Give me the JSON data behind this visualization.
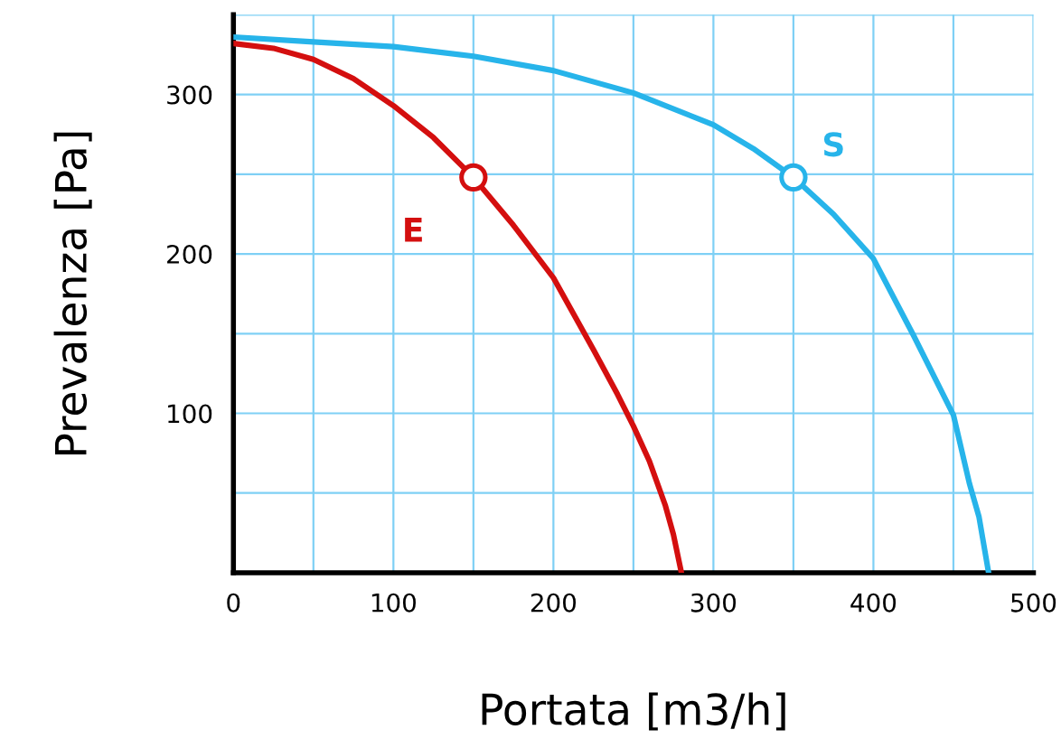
{
  "chart_data": {
    "type": "line",
    "xlabel": "Portata [m3/h]",
    "ylabel": "Prevalenza [Pa]",
    "xlim": [
      0,
      500
    ],
    "ylim": [
      0,
      350
    ],
    "xticks": [
      0,
      {
        "value": 50,
        "label": null
      },
      100,
      {
        "value": 150,
        "label": null
      },
      200,
      {
        "value": 250,
        "label": null
      },
      300,
      {
        "value": 350,
        "label": null
      },
      400,
      {
        "value": 450,
        "label": null
      },
      500
    ],
    "yticks": [
      {
        "value": 0,
        "label": null
      },
      {
        "value": 50,
        "label": null
      },
      100,
      {
        "value": 150,
        "label": null
      },
      200,
      {
        "value": 250,
        "label": null
      },
      300,
      {
        "value": 350,
        "label": null
      }
    ],
    "grid": true,
    "legend": false,
    "line_style": "solid",
    "series": [
      {
        "color": "#d40f0f",
        "x": [
          0,
          25,
          50,
          75,
          100,
          125,
          150,
          175,
          200,
          225,
          240,
          250,
          260,
          270,
          275,
          280
        ],
        "values": [
          332,
          329,
          322,
          310,
          293,
          273,
          248,
          218,
          185,
          140,
          112,
          92,
          70,
          42,
          24,
          0
        ]
      },
      {
        "color": "#27b4ea",
        "x": [
          0,
          50,
          100,
          150,
          200,
          250,
          300,
          325,
          350,
          375,
          400,
          425,
          450,
          460,
          466,
          472
        ],
        "values": [
          336,
          333,
          330,
          324,
          315,
          301,
          281,
          266,
          248,
          225,
          197,
          149,
          99,
          56,
          35,
          0
        ]
      },
      {
        "type": "scatter",
        "name": "E",
        "color": "#d40f0f",
        "marker": "circle",
        "x": [
          150
        ],
        "values": [
          248
        ]
      },
      {
        "type": "scatter",
        "name": "S",
        "color": "#27b4ea",
        "marker": "circle",
        "x": [
          350
        ],
        "values": [
          248
        ]
      }
    ]
  }
}
